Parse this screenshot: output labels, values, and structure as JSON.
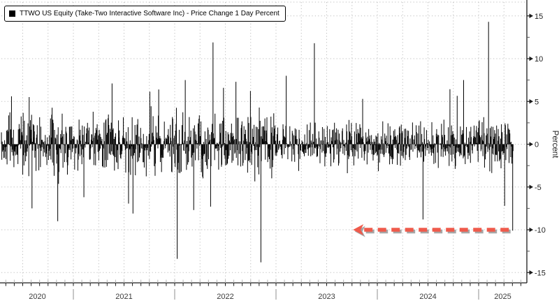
{
  "legend": {
    "label": "TTWO US Equity (Take-Two Interactive Software Inc) - Price Change 1 Day Percent"
  },
  "chart_data": {
    "type": "bar",
    "title": "TTWO US Equity (Take-Two Interactive Software Inc) - Price Change 1 Day Percent",
    "series_name": "TTWO US Equity (Take-Two Interactive Software Inc) - Price Change 1 Day Percent",
    "ylabel": "Percent",
    "ylim": [
      -16.6,
      16.6
    ],
    "y_major_ticks": [
      15,
      10,
      5,
      0,
      -5,
      -10,
      -15
    ],
    "y_minor_ticks": [
      12.5,
      7.5,
      2.5,
      -2.5,
      -7.5,
      -12.5
    ],
    "x_year_labels": [
      "2020",
      "2021",
      "2022",
      "2023",
      "2024",
      "2025"
    ],
    "x_domain_years": [
      2020.29,
      2025.48
    ],
    "data_start_year": 2020.29,
    "data_end_year": 2025.34,
    "grid": {
      "horizontal": true,
      "vertical_quarterly": true,
      "color": "#bdbdbd"
    },
    "bar_color": "#000000",
    "axis_color": "#1a1a1a",
    "tick_label_color": "#1f1f1f",
    "year_label_color": "#3c3c3c",
    "noise": {
      "seed": 42,
      "trading_days_per_year": 252,
      "daily_sigma_pct": 1.5,
      "fat_tail_prob": 0.045,
      "fat_tail_scale": 2.1,
      "clamp_pct": 7,
      "volatility_by_year": {
        "2020": 1.15,
        "2021": 1.0,
        "2022": 1.15,
        "2023": 0.85,
        "2024": 0.85,
        "2025": 0.95
      }
    },
    "notable_moves": [
      {
        "date": "2020-05-21",
        "pct": 5.6
      },
      {
        "date": "2020-08-04",
        "pct": -7.5
      },
      {
        "date": "2020-11-06",
        "pct": -9.0
      },
      {
        "date": "2021-02-09",
        "pct": -6.2
      },
      {
        "date": "2021-05-19",
        "pct": 7.1
      },
      {
        "date": "2021-08-03",
        "pct": -8.1
      },
      {
        "date": "2021-11-04",
        "pct": 6.4
      },
      {
        "date": "2022-01-10",
        "pct": -13.4
      },
      {
        "date": "2022-02-08",
        "pct": 7.5
      },
      {
        "date": "2022-03-08",
        "pct": -7.7
      },
      {
        "date": "2022-05-09",
        "pct": -7.3
      },
      {
        "date": "2022-05-17",
        "pct": 11.9
      },
      {
        "date": "2022-06-24",
        "pct": 6.6
      },
      {
        "date": "2022-08-09",
        "pct": 7.3
      },
      {
        "date": "2022-11-07",
        "pct": -13.8
      },
      {
        "date": "2023-02-07",
        "pct": 8.0
      },
      {
        "date": "2023-05-18",
        "pct": 11.8
      },
      {
        "date": "2023-11-09",
        "pct": 5.3
      },
      {
        "date": "2024-06-14",
        "pct": -8.8
      },
      {
        "date": "2024-11-07",
        "pct": 7.5
      },
      {
        "date": "2025-02-07",
        "pct": 14.3
      },
      {
        "date": "2025-04-04",
        "pct": -7.2
      },
      {
        "date": "2025-05-02",
        "pct": -10.1,
        "annotated": true
      }
    ],
    "annotation_arrow": {
      "points_to_pct": -10,
      "from_year": 2025.3,
      "to_year": 2023.76,
      "direction": "left",
      "style": "dashed",
      "color": "#ef5a4b",
      "shadow_color": "#8a8a8a"
    }
  }
}
